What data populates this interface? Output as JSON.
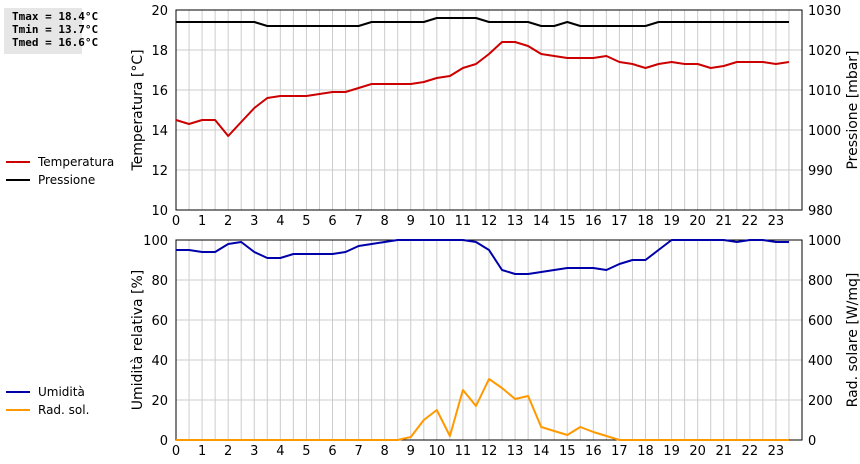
{
  "stats": {
    "tmax": "Tmax = 18.4°C",
    "tmin": "Tmin = 13.7°C",
    "tmed": "Tmed = 16.6°C"
  },
  "colors": {
    "temperature": "#cc0000",
    "pressure": "#000000",
    "humidity": "#0000aa",
    "radiation": "#ff9900",
    "grid": "#cccccc"
  },
  "chart_data": [
    {
      "type": "line",
      "x_ticks": [
        "0",
        "1",
        "2",
        "3",
        "4",
        "5",
        "6",
        "7",
        "8",
        "9",
        "10",
        "11",
        "12",
        "13",
        "14",
        "15",
        "16",
        "17",
        "18",
        "19",
        "20",
        "21",
        "22",
        "23"
      ],
      "xlim": [
        0,
        24
      ],
      "ylabel": "Temperatura [°C]",
      "ylim": [
        10,
        20
      ],
      "yticks": [
        "10",
        "12",
        "14",
        "16",
        "18",
        "20"
      ],
      "y2label": "Pressione [mbar]",
      "y2lim": [
        980,
        1030
      ],
      "y2ticks": [
        "980",
        "990",
        "1000",
        "1010",
        "1020",
        "1030"
      ],
      "legend": [
        "Temperatura",
        "Pressione"
      ],
      "grid": true,
      "series": [
        {
          "name": "Temperatura",
          "axis": "left",
          "x": [
            0,
            0.5,
            1,
            1.5,
            2,
            2.5,
            3,
            3.5,
            4,
            4.5,
            5,
            5.5,
            6,
            6.5,
            7,
            7.5,
            8,
            8.5,
            9,
            9.5,
            10,
            10.5,
            11,
            11.5,
            12,
            12.5,
            13,
            13.5,
            14,
            14.5,
            15,
            15.5,
            16,
            16.5,
            17,
            17.5,
            18,
            18.5,
            19,
            19.5,
            20,
            20.5,
            21,
            21.5,
            22,
            22.5,
            23,
            23.5
          ],
          "values": [
            14.5,
            14.3,
            14.5,
            14.5,
            13.7,
            14.4,
            15.1,
            15.6,
            15.7,
            15.7,
            15.7,
            15.8,
            15.9,
            15.9,
            16.1,
            16.3,
            16.3,
            16.3,
            16.3,
            16.4,
            16.6,
            16.7,
            17.1,
            17.3,
            17.8,
            18.4,
            18.4,
            18.2,
            17.8,
            17.7,
            17.6,
            17.6,
            17.6,
            17.7,
            17.4,
            17.3,
            17.1,
            17.3,
            17.4,
            17.3,
            17.3,
            17.1,
            17.2,
            17.4,
            17.4,
            17.4,
            17.3,
            17.4
          ]
        },
        {
          "name": "Pressione",
          "axis": "right",
          "x": [
            0,
            1,
            2,
            3,
            3.5,
            4,
            5,
            6,
            7,
            7.5,
            8,
            9,
            9.5,
            10,
            11,
            11.5,
            12,
            13,
            13.5,
            14,
            14.5,
            15,
            15.5,
            16,
            17,
            18,
            18.5,
            19,
            20,
            21,
            22,
            23,
            23.5
          ],
          "values": [
            1027,
            1027,
            1027,
            1027,
            1026,
            1026,
            1026,
            1026,
            1026,
            1027,
            1027,
            1027,
            1027,
            1028,
            1028,
            1028,
            1027,
            1027,
            1027,
            1026,
            1026,
            1027,
            1026,
            1026,
            1026,
            1026,
            1027,
            1027,
            1027,
            1027,
            1027,
            1027,
            1027
          ]
        }
      ]
    },
    {
      "type": "line",
      "x_ticks": [
        "0",
        "1",
        "2",
        "3",
        "4",
        "5",
        "6",
        "7",
        "8",
        "9",
        "10",
        "11",
        "12",
        "13",
        "14",
        "15",
        "16",
        "17",
        "18",
        "19",
        "20",
        "21",
        "22",
        "23"
      ],
      "xlim": [
        0,
        24
      ],
      "ylabel": "Umidità relativa [%]",
      "ylim": [
        0,
        100
      ],
      "yticks": [
        "0",
        "20",
        "40",
        "60",
        "80",
        "100"
      ],
      "y2label": "Rad. solare [W/mq]",
      "y2lim": [
        0,
        1000
      ],
      "y2ticks": [
        "0",
        "200",
        "400",
        "600",
        "800",
        "1000"
      ],
      "legend": [
        "Umidità",
        "Rad. sol."
      ],
      "grid": true,
      "series": [
        {
          "name": "Umidità",
          "axis": "left",
          "x": [
            0,
            0.5,
            1,
            1.5,
            2,
            2.5,
            3,
            3.5,
            4,
            4.5,
            5,
            5.5,
            6,
            6.5,
            7,
            7.5,
            8,
            8.5,
            9,
            10,
            11,
            11.5,
            12,
            12.5,
            13,
            13.5,
            14,
            14.5,
            15,
            15.5,
            16,
            16.5,
            17,
            17.5,
            18,
            18.5,
            19,
            20,
            21,
            21.5,
            22,
            22.5,
            23,
            23.5
          ],
          "values": [
            95,
            95,
            94,
            94,
            98,
            99,
            94,
            91,
            91,
            93,
            93,
            93,
            93,
            94,
            97,
            98,
            99,
            100,
            100,
            100,
            100,
            99,
            95,
            85,
            83,
            83,
            84,
            85,
            86,
            86,
            86,
            85,
            88,
            90,
            90,
            95,
            100,
            100,
            100,
            99,
            100,
            100,
            99,
            99
          ]
        },
        {
          "name": "Rad. sol.",
          "axis": "right",
          "x": [
            0,
            8.5,
            9,
            9.5,
            10,
            10.5,
            11,
            11.5,
            12,
            12.5,
            13,
            13.5,
            14,
            14.5,
            15,
            15.5,
            16,
            16.5,
            17,
            18,
            19,
            20,
            21,
            22,
            23,
            23.5
          ],
          "values": [
            0,
            0,
            15,
            100,
            150,
            20,
            250,
            170,
            305,
            260,
            205,
            220,
            65,
            45,
            25,
            65,
            40,
            20,
            0,
            0,
            0,
            0,
            0,
            0,
            0,
            0
          ]
        }
      ]
    }
  ]
}
